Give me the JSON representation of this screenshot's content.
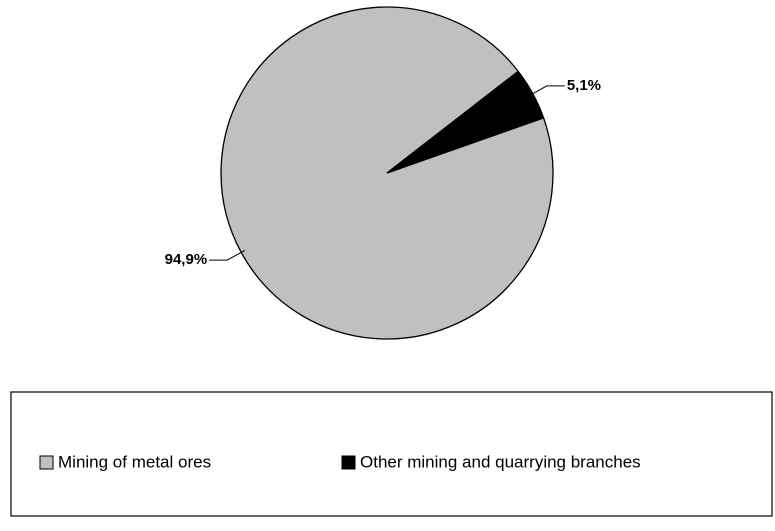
{
  "chart_data": {
    "type": "pie",
    "categories": [
      "Mining of metal ores",
      "Other mining and quarrying branches"
    ],
    "values": [
      94.9,
      5.1
    ],
    "value_labels": [
      "94,9%",
      "5,1%"
    ],
    "colors": [
      "#c0c0c0",
      "#000000"
    ],
    "legend": "bottom"
  }
}
